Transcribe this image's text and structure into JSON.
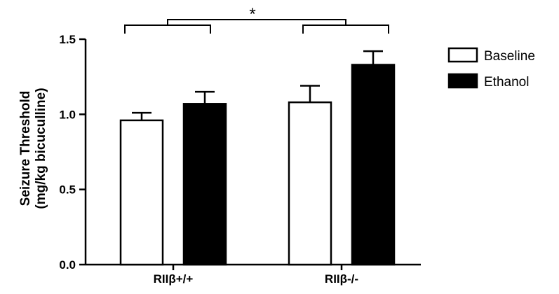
{
  "chart_data": {
    "type": "bar",
    "ylabel_line1": "Seizure Threshold",
    "ylabel_line2": "(mg/kg bicuculline)",
    "ylim": [
      0,
      1.5
    ],
    "yticks": [
      "0.0",
      "0.5",
      "1.0",
      "1.5"
    ],
    "categories": [
      "RIIβ+/+",
      "RIIβ-/-"
    ],
    "series": [
      {
        "name": "Baseline",
        "values": [
          0.96,
          1.08
        ],
        "errors": [
          0.05,
          0.11
        ],
        "fill": "#ffffff"
      },
      {
        "name": "Ethanol",
        "values": [
          1.07,
          1.33
        ],
        "errors": [
          0.08,
          0.09
        ],
        "fill": "#000000"
      }
    ],
    "annotation": "*",
    "grid": false,
    "legend_position": "right"
  }
}
